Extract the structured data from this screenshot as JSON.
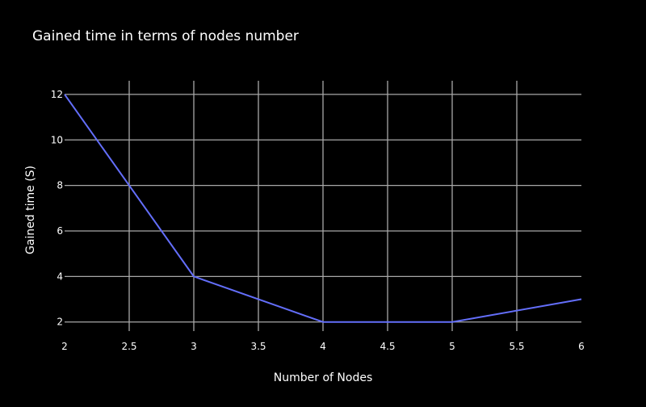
{
  "chart_data": {
    "type": "line",
    "title": "Gained time in terms of nodes number",
    "xlabel": "Number of Nodes",
    "ylabel": "Gained time (S)",
    "x": [
      2,
      3,
      4,
      5,
      6
    ],
    "series": [
      {
        "values": [
          12,
          4,
          2,
          2,
          3
        ]
      }
    ],
    "xlim": [
      2,
      6
    ],
    "ylim": [
      1.6,
      12.6
    ],
    "xticks": [
      2,
      2.5,
      3,
      3.5,
      4,
      4.5,
      5,
      5.5,
      6
    ],
    "yticks": [
      2,
      4,
      6,
      8,
      10,
      12
    ],
    "grid": true,
    "colors": {
      "background": "#000000",
      "line": "#636efa",
      "grid": "#a8a8a8",
      "text": "#ffffff"
    }
  }
}
